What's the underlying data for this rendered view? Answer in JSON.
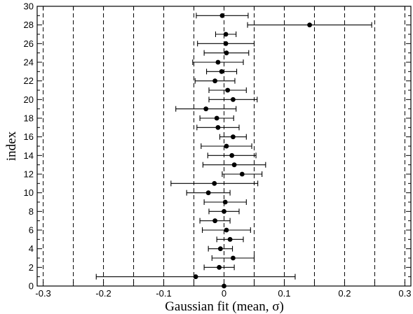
{
  "chart_data": {
    "type": "scatter",
    "title": "",
    "xlabel": "Gaussian fit (mean, σ)",
    "ylabel": "index",
    "xlim": [
      -0.31,
      0.31
    ],
    "ylim": [
      0,
      30
    ],
    "grid": true,
    "x_ticks": [
      -0.3,
      -0.25,
      -0.2,
      -0.15,
      -0.1,
      -0.05,
      0,
      0.05,
      0.1,
      0.15,
      0.2,
      0.25,
      0.3
    ],
    "x_tick_labels": [
      "-0.3",
      "",
      "-0.2",
      "",
      "-0.1",
      "",
      "0",
      "",
      "0.1",
      "",
      "0.2",
      "",
      "0.3"
    ],
    "y_ticks": [
      0,
      2,
      4,
      6,
      8,
      10,
      12,
      14,
      16,
      18,
      20,
      22,
      24,
      26,
      28,
      30
    ],
    "y_tick_labels": [
      "0",
      "2",
      "4",
      "6",
      "8",
      "10",
      "12",
      "14",
      "16",
      "18",
      "20",
      "22",
      "24",
      "26",
      "28",
      "30"
    ],
    "series": [
      {
        "points": [
          {
            "index": 0,
            "mean": 0.0,
            "sigma": 0.0
          },
          {
            "index": 1,
            "mean": -0.047,
            "sigma": 0.165
          },
          {
            "index": 2,
            "mean": -0.008,
            "sigma": 0.025
          },
          {
            "index": 3,
            "mean": 0.015,
            "sigma": 0.035
          },
          {
            "index": 4,
            "mean": -0.006,
            "sigma": 0.02
          },
          {
            "index": 5,
            "mean": 0.01,
            "sigma": 0.022
          },
          {
            "index": 6,
            "mean": 0.004,
            "sigma": 0.04
          },
          {
            "index": 7,
            "mean": -0.015,
            "sigma": 0.025
          },
          {
            "index": 8,
            "mean": 0.0,
            "sigma": 0.025
          },
          {
            "index": 9,
            "mean": 0.002,
            "sigma": 0.035
          },
          {
            "index": 10,
            "mean": -0.026,
            "sigma": 0.036
          },
          {
            "index": 11,
            "mean": -0.016,
            "sigma": 0.072
          },
          {
            "index": 12,
            "mean": 0.03,
            "sigma": 0.033
          },
          {
            "index": 13,
            "mean": 0.017,
            "sigma": 0.052
          },
          {
            "index": 14,
            "mean": 0.013,
            "sigma": 0.04
          },
          {
            "index": 15,
            "mean": 0.004,
            "sigma": 0.042
          },
          {
            "index": 16,
            "mean": 0.015,
            "sigma": 0.022
          },
          {
            "index": 17,
            "mean": -0.01,
            "sigma": 0.035
          },
          {
            "index": 18,
            "mean": -0.012,
            "sigma": 0.028
          },
          {
            "index": 19,
            "mean": -0.03,
            "sigma": 0.05
          },
          {
            "index": 20,
            "mean": 0.015,
            "sigma": 0.04
          },
          {
            "index": 21,
            "mean": 0.006,
            "sigma": 0.031
          },
          {
            "index": 22,
            "mean": -0.015,
            "sigma": 0.033
          },
          {
            "index": 23,
            "mean": -0.004,
            "sigma": 0.025
          },
          {
            "index": 24,
            "mean": -0.01,
            "sigma": 0.042
          },
          {
            "index": 25,
            "mean": 0.004,
            "sigma": 0.037
          },
          {
            "index": 26,
            "mean": 0.003,
            "sigma": 0.047
          },
          {
            "index": 27,
            "mean": 0.003,
            "sigma": 0.017
          },
          {
            "index": 28,
            "mean": 0.142,
            "sigma": 0.103
          },
          {
            "index": 29,
            "mean": -0.003,
            "sigma": 0.043
          }
        ]
      }
    ],
    "colors": {
      "points": "#000000",
      "grid": "#000000"
    }
  }
}
